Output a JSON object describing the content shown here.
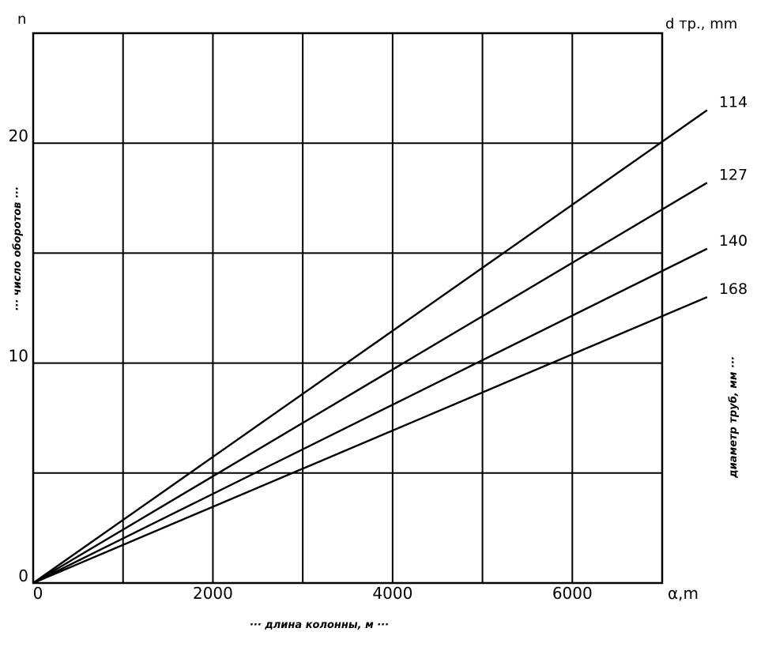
{
  "chart_data": {
    "type": "line",
    "xlabel": "··· длина колонны, м ···",
    "ylabel": "··· число оборотов ···",
    "right_label": "диаметр труб, мм ···",
    "x_axis_end_label": "α,m",
    "y_axis_top_label": "n",
    "series_header_label": "d тр., mm",
    "xlim": [
      0,
      7000
    ],
    "ylim": [
      0,
      25
    ],
    "x_ticks": [
      {
        "value": 0,
        "label": "0"
      },
      {
        "value": 2000,
        "label": "2000"
      },
      {
        "value": 4000,
        "label": "4000"
      },
      {
        "value": 6000,
        "label": "6000"
      }
    ],
    "y_ticks": [
      {
        "value": 0,
        "label": "0"
      },
      {
        "value": 10,
        "label": "10"
      },
      {
        "value": 20,
        "label": "20"
      }
    ],
    "grid_x": [
      0,
      1000,
      2000,
      3000,
      4000,
      5000,
      6000,
      7000
    ],
    "grid_y": [
      0,
      5,
      10,
      15,
      20,
      25
    ],
    "grid": true,
    "series": [
      {
        "name": "114",
        "x": [
          0,
          7500
        ],
        "y": [
          0,
          21.5
        ]
      },
      {
        "name": "127",
        "x": [
          0,
          7500
        ],
        "y": [
          0,
          18.2
        ]
      },
      {
        "name": "140",
        "x": [
          0,
          7500
        ],
        "y": [
          0,
          15.2
        ]
      },
      {
        "name": "168",
        "x": [
          0,
          7500
        ],
        "y": [
          0,
          13.0
        ]
      }
    ]
  }
}
